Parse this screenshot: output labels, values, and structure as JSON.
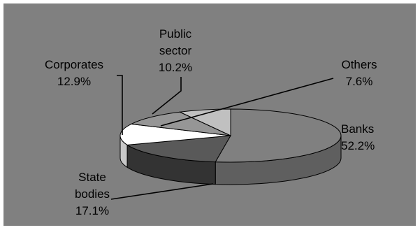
{
  "chart_data": {
    "type": "pie",
    "style": "3d",
    "title": "",
    "slices": [
      {
        "label_lines": [
          "Banks"
        ],
        "value_text": "52.2%",
        "value": 52.2,
        "color": "#808080",
        "side_color": "#5f5f5f"
      },
      {
        "label_lines": [
          "State",
          "bodies"
        ],
        "value_text": "17.1%",
        "value": 17.1,
        "color": "#595959",
        "side_color": "#333333"
      },
      {
        "label_lines": [
          "Corporates"
        ],
        "value_text": "12.9%",
        "value": 12.9,
        "color": "#ffffff",
        "side_color": "#c8c8c8"
      },
      {
        "label_lines": [
          "Public",
          "sector"
        ],
        "value_text": "10.2%",
        "value": 10.2,
        "color": "#969696",
        "side_color": "#6e6e6e"
      },
      {
        "label_lines": [
          "Others"
        ],
        "value_text": "7.6%",
        "value": 7.6,
        "color": "#c0c0c0",
        "side_color": "#8f8f8f"
      }
    ],
    "legend": "none",
    "background_color": "#808080"
  }
}
